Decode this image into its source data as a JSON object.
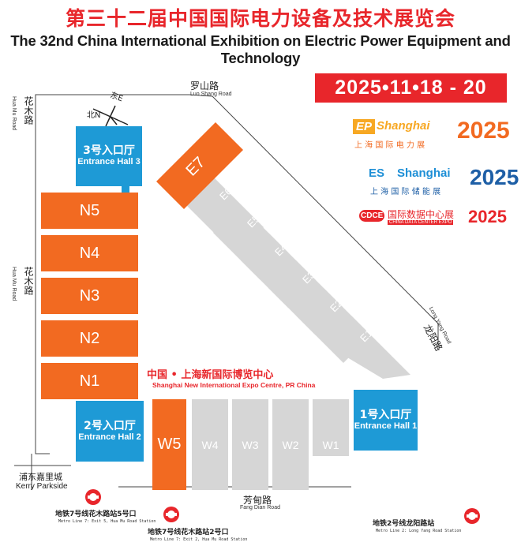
{
  "title": {
    "cn": "第三十二届中国国际电力设备及技术展览会",
    "en": "The 32nd China International Exhibition on Electric Power Equipment and Technology"
  },
  "date": "2025•11•18 - 20",
  "logos": [
    {
      "name": "EP Shanghai",
      "mark": "EP",
      "city": "Shanghai",
      "year": "2025",
      "sub": "上 海 国 际 电 力 展"
    },
    {
      "name": "ES Shanghai",
      "mark": "ES",
      "city": "Shanghai",
      "year": "2025",
      "sub": "上 海 国 际 储 能 展"
    },
    {
      "name": "CDCE",
      "mark": "CDCE",
      "title": "国际数据中心展",
      "sub": "CHINA DATA CENTER EXPO",
      "year": "2025"
    }
  ],
  "compass": {
    "north": "北N",
    "east": "东E"
  },
  "venue": {
    "cn": "中国 • 上海新国际博览中心",
    "en": "Shanghai New International Expo Centre, PR China"
  },
  "roads": {
    "luoshan": {
      "cn": "罗山路",
      "en": "Luo Shang Road"
    },
    "huamu_top": {
      "cn": "花木路",
      "en": "Hua Mu Road"
    },
    "huamu_mid": {
      "cn": "花木路",
      "en": "Hua Mu Road"
    },
    "longyang": {
      "cn": "龙阳路",
      "en": "Long Yang Road"
    },
    "fangdian": {
      "cn": "芳甸路",
      "en": "Fang Dian Road"
    }
  },
  "kerry": {
    "cn": "浦东嘉里城",
    "en": "Kerry Parkside"
  },
  "halls": {
    "n": [
      "N5",
      "N4",
      "N3",
      "N2",
      "N1"
    ],
    "e": [
      "E7",
      "E6",
      "E5",
      "E4",
      "E3",
      "E2",
      "E1"
    ],
    "w": [
      "W5",
      "W4",
      "W3",
      "W2",
      "W1"
    ],
    "highlighted": [
      "N5",
      "N4",
      "N3",
      "N2",
      "N1",
      "E7",
      "W5"
    ]
  },
  "entrances": {
    "hall3": {
      "cn": "3号入口厅",
      "en": "Entrance Hall 3"
    },
    "hall2": {
      "cn": "2号入口厅",
      "en": "Entrance Hall 2"
    },
    "hall1": {
      "cn": "1号入口厅",
      "en": "Entrance Hall 1"
    }
  },
  "metro": [
    {
      "cn": "地铁7号线花木路站5号口",
      "en": "Metro Line 7: Exit 5, Hua Mu Road Station"
    },
    {
      "cn": "地铁7号线花木路站2号口",
      "en": "Metro Line 7: Exit 2, Hua Mu Road Station"
    },
    {
      "cn": "地铁2号线龙阳路站",
      "en": "Metro Line 2: Long Yang Road Station"
    }
  ],
  "colors": {
    "orange": "#f26a21",
    "blue": "#1e9ad6",
    "gray": "#d6d6d6",
    "red": "#e8262b"
  }
}
